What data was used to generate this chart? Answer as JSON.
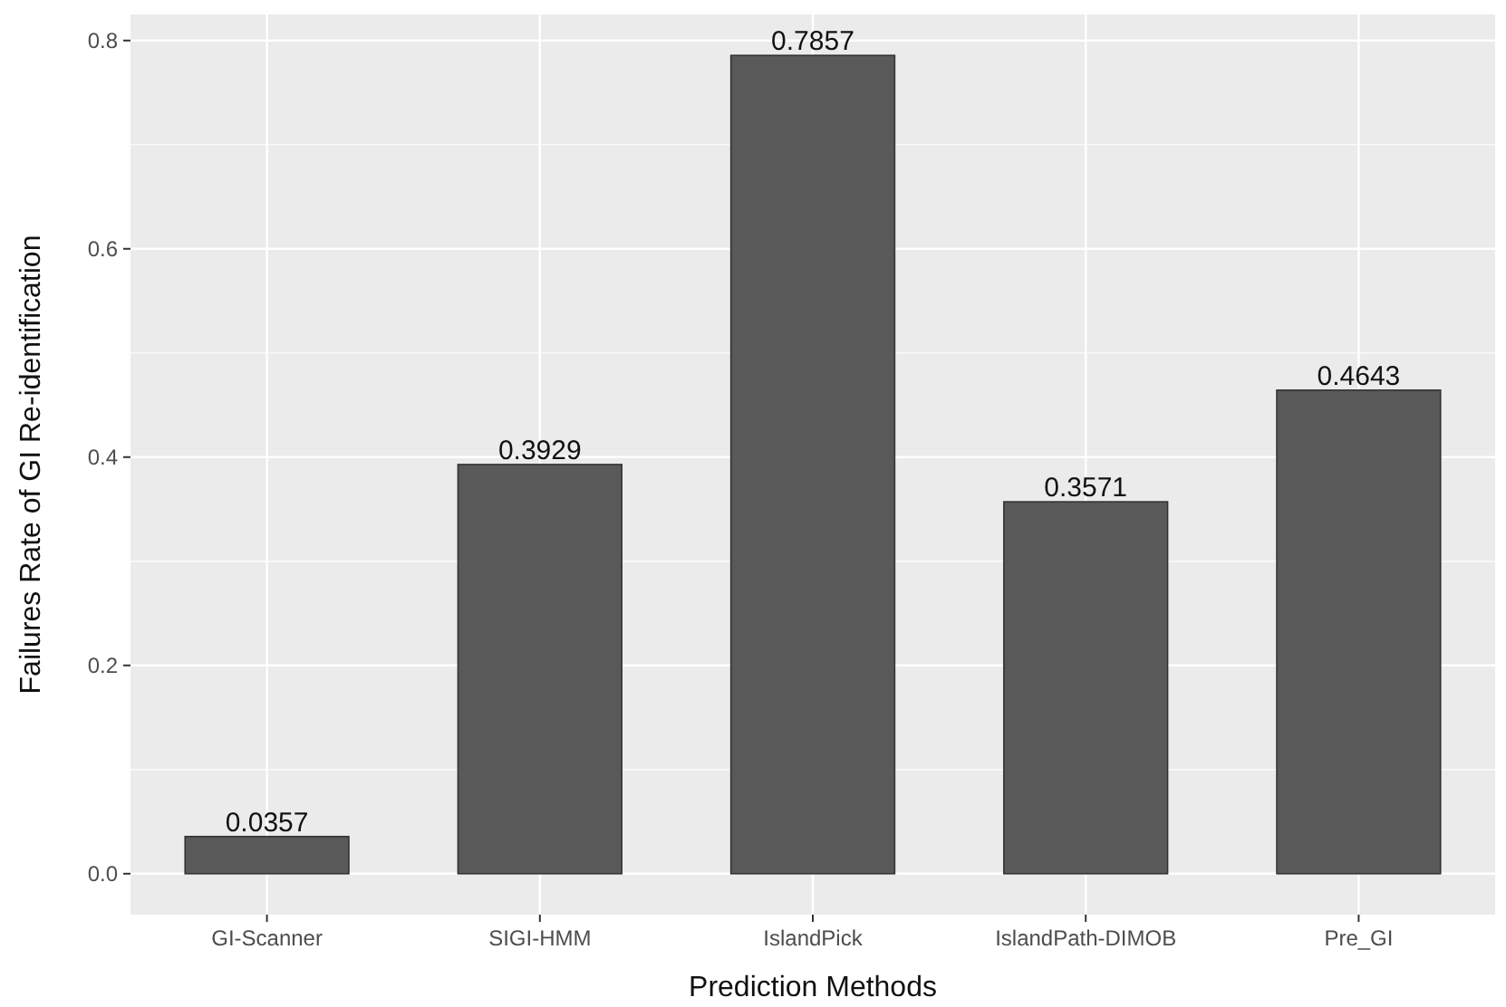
{
  "chart_data": {
    "type": "bar",
    "xlabel": "Prediction Methods",
    "ylabel": "Failures Rate of GI Re-identification",
    "categories": [
      "GI-Scanner",
      "SIGI-HMM",
      "IslandPick",
      "IslandPath-DIMOB",
      "Pre_GI"
    ],
    "values": [
      0.0357,
      0.3929,
      0.7857,
      0.3571,
      0.4643
    ],
    "color": "#595959",
    "ylim": [
      -0.0393,
      0.825
    ],
    "yticks": [
      {
        "value": 0,
        "label": "0.0"
      },
      {
        "value": 0.2,
        "label": "0.2"
      },
      {
        "value": 0.4,
        "label": "0.4"
      },
      {
        "value": 0.6,
        "label": "0.6"
      },
      {
        "value": 0.8,
        "label": "0.8"
      }
    ],
    "grid": true,
    "data_labels": true
  }
}
